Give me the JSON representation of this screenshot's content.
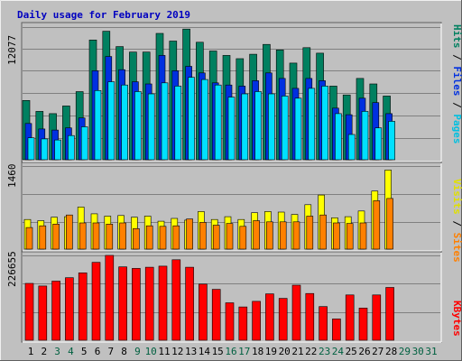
{
  "chart_data": {
    "type": "bar",
    "title": "Daily usage for February 2019",
    "categories": [
      "1",
      "2",
      "3",
      "4",
      "5",
      "6",
      "7",
      "8",
      "9",
      "10",
      "11",
      "12",
      "13",
      "14",
      "15",
      "16",
      "17",
      "18",
      "19",
      "20",
      "21",
      "22",
      "23",
      "24",
      "25",
      "26",
      "27",
      "28",
      "29",
      "30",
      "31"
    ],
    "day_label_colors": [
      "#000000",
      "#000000",
      "#006040",
      "#006040",
      "#000000",
      "#000000",
      "#000000",
      "#000000",
      "#006040",
      "#006040",
      "#000000",
      "#000000",
      "#000000",
      "#000000",
      "#000000",
      "#006040",
      "#006040",
      "#000000",
      "#000000",
      "#000000",
      "#000000",
      "#000000",
      "#006040",
      "#006040",
      "#000000",
      "#000000",
      "#000000",
      "#000000",
      "#006040",
      "#006040",
      "#006040"
    ],
    "panels": [
      {
        "max_label": "12077",
        "ylim": [
          0,
          12077
        ],
        "series": [
          {
            "name": "Hits",
            "color": "#008060",
            "values": [
              5400,
              4400,
              4200,
              4900,
              6200,
              10900,
              11700,
              10300,
              9800,
              9800,
              11500,
              10800,
              11900,
              10700,
              9900,
              9500,
              9200,
              9600,
              10500,
              10000,
              8800,
              10200,
              9700,
              6700,
              5900,
              7400,
              6900,
              5800,
              null,
              null,
              null
            ]
          },
          {
            "name": "Files",
            "color": "#0030e0",
            "values": [
              3300,
              2800,
              2700,
              2900,
              3800,
              8100,
              9400,
              8200,
              7100,
              6900,
              9500,
              8100,
              8500,
              7900,
              7000,
              6800,
              6700,
              7200,
              7900,
              7400,
              6500,
              7400,
              7200,
              4700,
              4100,
              5600,
              5200,
              4200,
              null,
              null,
              null
            ]
          },
          {
            "name": "Pages",
            "color": "#00e0ff",
            "values": [
              2000,
              1900,
              1800,
              2200,
              3000,
              6300,
              7100,
              6800,
              6200,
              6000,
              7000,
              6700,
              7500,
              7300,
              6800,
              5700,
              6000,
              6200,
              6000,
              5800,
              5600,
              6500,
              6700,
              4200,
              2300,
              4400,
              2900,
              3500,
              null,
              null,
              null
            ]
          }
        ]
      },
      {
        "max_label": "1460",
        "ylim": [
          0,
          1460
        ],
        "series": [
          {
            "name": "Visits",
            "color": "#ffff00",
            "values": [
              520,
              500,
              560,
              570,
              740,
              620,
              580,
              590,
              560,
              580,
              490,
              540,
              510,
              660,
              520,
              570,
              520,
              640,
              660,
              650,
              610,
              780,
              950,
              550,
              570,
              670,
              1020,
              1390,
              null,
              null,
              null
            ]
          },
          {
            "name": "Sites",
            "color": "#ff8000",
            "values": [
              380,
              410,
              440,
              600,
              460,
              460,
              440,
              460,
              360,
              410,
              400,
              410,
              530,
              470,
              420,
              450,
              400,
              500,
              480,
              480,
              480,
              580,
              600,
              460,
              450,
              460,
              850,
              890,
              null,
              null,
              null
            ]
          }
        ]
      },
      {
        "max_label": "226655",
        "ylim": [
          0,
          226655
        ],
        "series": [
          {
            "name": "KBytes",
            "color": "#ff0000",
            "values": [
              152000,
              145000,
              158000,
              167000,
              180000,
              208000,
              226655,
              196000,
              192000,
              195000,
              198000,
              215000,
              195000,
              150000,
              136000,
              100000,
              89000,
              104000,
              124000,
              112000,
              147000,
              125000,
              90000,
              57000,
              121000,
              86000,
              121000,
              141000,
              null,
              null,
              null
            ]
          }
        ]
      }
    ]
  }
}
